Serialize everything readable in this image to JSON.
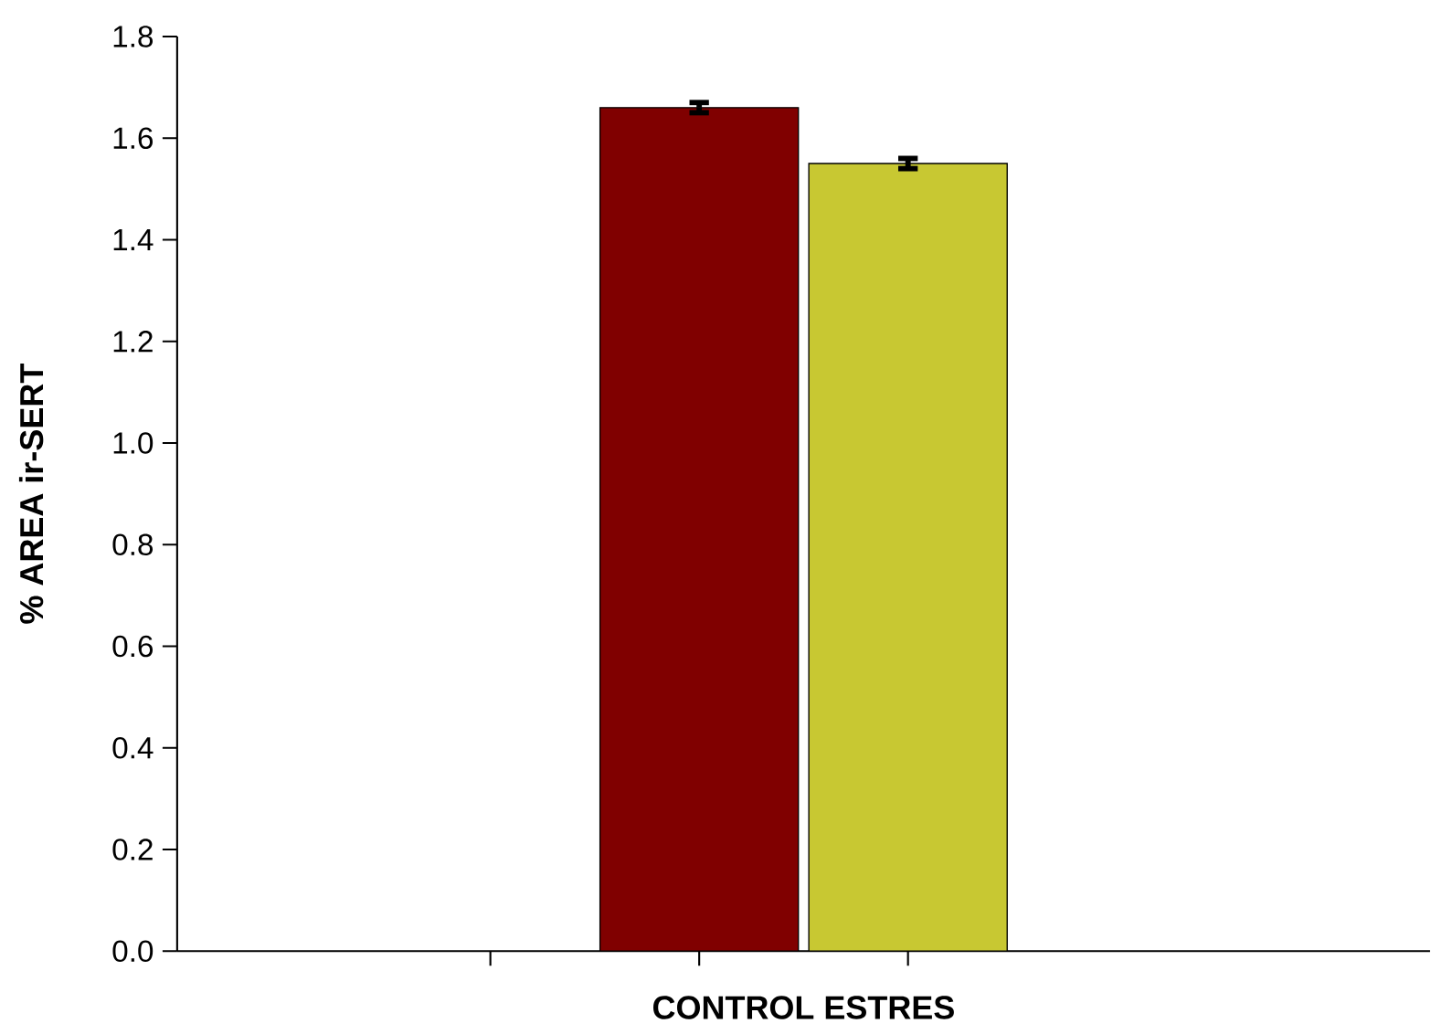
{
  "chart_data": {
    "type": "bar",
    "xlabel": "CONTROL  ESTRES",
    "ylabel": "% AREA ir-SERT",
    "categories": [
      null,
      null,
      null,
      null,
      null,
      null
    ],
    "values": [
      null,
      null,
      1.66,
      1.55,
      null,
      null
    ],
    "errors": [
      null,
      null,
      0.01,
      0.01,
      null,
      null
    ],
    "colors": [
      "#800000",
      "#800000",
      "#800000",
      "#c8c832",
      "#c8c832",
      "#c8c832"
    ],
    "ylim": [
      0,
      1.8
    ],
    "yticks": [
      {
        "value": 0,
        "label": "0.0"
      },
      {
        "value": 0.2,
        "label": "0.2"
      },
      {
        "value": 0.4,
        "label": "0.4"
      },
      {
        "value": 0.6,
        "label": "0.6"
      },
      {
        "value": 0.8,
        "label": "0.8"
      },
      {
        "value": 1.0,
        "label": "1.0"
      },
      {
        "value": 1.2,
        "label": "1.2"
      },
      {
        "value": 1.4,
        "label": "1.4"
      },
      {
        "value": 1.6,
        "label": "1.6"
      },
      {
        "value": 1.8,
        "label": "1.8"
      }
    ],
    "grid": false
  }
}
